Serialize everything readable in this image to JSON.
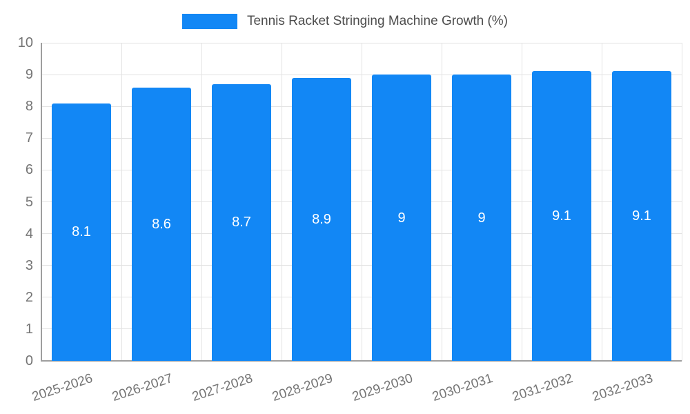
{
  "chart_data": {
    "type": "bar",
    "title": "Tennis Racket Stringing Machine Growth (%)",
    "categories": [
      "2025-2026",
      "2026-2027",
      "2027-2028",
      "2028-2029",
      "2029-2030",
      "2030-2031",
      "2031-2032",
      "2032-2033"
    ],
    "values": [
      8.1,
      8.6,
      8.7,
      8.9,
      9,
      9,
      9.1,
      9.1
    ],
    "value_labels": [
      "8.1",
      "8.6",
      "8.7",
      "8.9",
      "9",
      "9",
      "9.1",
      "9.1"
    ],
    "xlabel": "",
    "ylabel": "",
    "ylim": [
      0,
      10
    ],
    "yticks": [
      0,
      1,
      2,
      3,
      4,
      5,
      6,
      7,
      8,
      9,
      10
    ],
    "grid": true,
    "legend_position": "top-center",
    "bar_color": "#1287f5"
  },
  "colors": {
    "bar": "#1287f5",
    "grid": "#e2e2e2",
    "axis": "#9e9e9e",
    "tick_text": "#757575",
    "title_text": "#4d4d4d",
    "value_text": "#ffffff"
  }
}
